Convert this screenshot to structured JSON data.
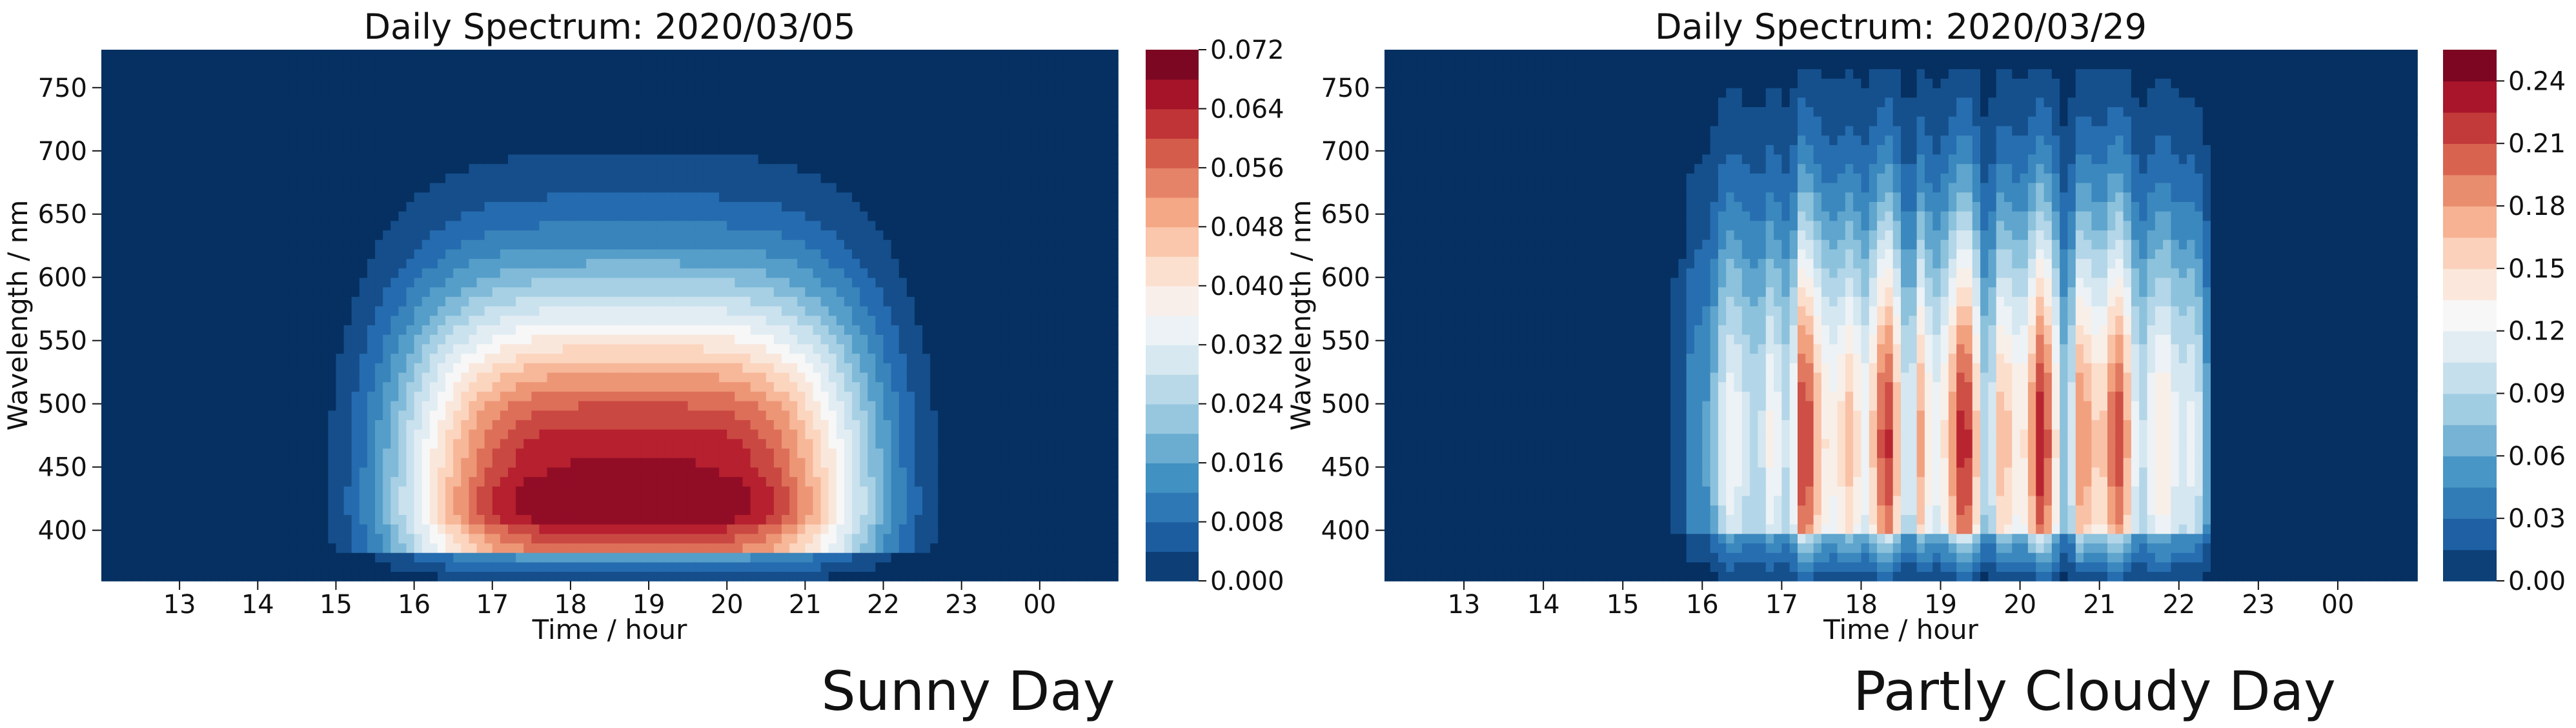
{
  "chart_data": [
    {
      "type": "heatmap",
      "title": "Daily Spectrum: 2020/03/05",
      "xlabel": "Time / hour",
      "ylabel": "Wavelength / nm",
      "x_ticks": [
        "13",
        "14",
        "15",
        "16",
        "17",
        "18",
        "19",
        "20",
        "21",
        "22",
        "23",
        "00"
      ],
      "y_ticks": [
        "400",
        "450",
        "500",
        "550",
        "600",
        "650",
        "700",
        "750"
      ],
      "colorbar_ticks": [
        "0.000",
        "0.008",
        "0.016",
        "0.024",
        "0.032",
        "0.040",
        "0.048",
        "0.056",
        "0.064",
        "0.072"
      ],
      "colorbar_range": [
        0,
        0.072
      ],
      "ylim": [
        360,
        780
      ],
      "peak": {
        "time_hour": 18.8,
        "wavelength_nm": 450,
        "value": 0.072
      },
      "caption": "Sunny Day"
    },
    {
      "type": "heatmap",
      "title": "Daily Spectrum: 2020/03/29",
      "xlabel": "Time / hour",
      "ylabel": "Wavelength / nm",
      "x_ticks": [
        "13",
        "14",
        "15",
        "16",
        "17",
        "18",
        "19",
        "20",
        "21",
        "22",
        "23",
        "00"
      ],
      "y_ticks": [
        "400",
        "450",
        "500",
        "550",
        "600",
        "650",
        "700",
        "750"
      ],
      "colorbar_ticks": [
        "0.00",
        "0.03",
        "0.06",
        "0.09",
        "0.12",
        "0.15",
        "0.18",
        "0.21",
        "0.24"
      ],
      "colorbar_range": [
        0,
        0.255
      ],
      "ylim": [
        360,
        780
      ],
      "peak": {
        "time_hour": 19.5,
        "wavelength_nm": 470,
        "value": 0.25
      },
      "caption": "Partly Cloudy Day"
    }
  ],
  "colormap": [
    "#053061",
    "#2166ac",
    "#4393c3",
    "#92c5de",
    "#d1e5f0",
    "#f7f7f7",
    "#fddbc7",
    "#f4a582",
    "#d6604d",
    "#b2182b",
    "#67001f"
  ]
}
